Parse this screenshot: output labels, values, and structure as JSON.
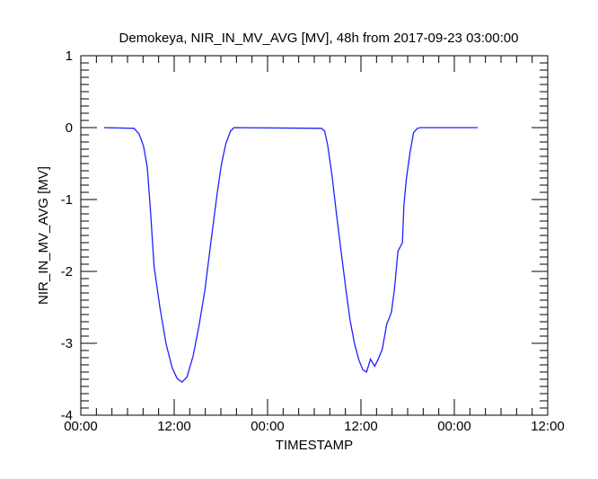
{
  "chart_data": {
    "type": "line",
    "title": "Demokeya, NIR_IN_MV_AVG [MV], 48h from  2017-09-23 03:00:00",
    "xlabel": "TIMESTAMP",
    "ylabel": "NIR_IN_MV_AVG [MV]",
    "xlim_hours": [
      0,
      60
    ],
    "ylim": [
      -4,
      1
    ],
    "x_tick_hours": [
      0,
      12,
      24,
      36,
      48,
      60
    ],
    "x_tick_labels": [
      "00:00",
      "12:00",
      "00:00",
      "12:00",
      "00:00",
      "12:00"
    ],
    "y_ticks": [
      1,
      0,
      -1,
      -2,
      -3,
      -4
    ],
    "y_tick_labels": [
      "1",
      "0",
      "-1",
      "-2",
      "-3",
      "-4"
    ],
    "grid": false,
    "series": [
      {
        "name": "NIR_IN_MV_AVG",
        "color": "#2020ff",
        "x_hours": [
          3,
          6.84,
          7.5,
          8.07,
          8.54,
          8.92,
          9.42,
          10.18,
          10.96,
          11.73,
          12.38,
          13.0,
          13.64,
          14.42,
          15.19,
          15.95,
          16.72,
          17.5,
          18.07,
          18.65,
          19.23,
          19.69,
          30.95,
          31.34,
          31.72,
          32.3,
          32.87,
          33.45,
          34.03,
          34.6,
          35.18,
          35.76,
          36.25,
          36.71,
          37.22,
          37.75,
          38.26,
          38.75,
          39.3,
          39.91,
          40.29,
          40.75,
          41.33,
          41.52,
          41.83,
          42.3,
          42.76,
          43.25,
          43.63,
          51
        ],
        "values": [
          0,
          -0.01,
          -0.09,
          -0.26,
          -0.55,
          -1.1,
          -1.93,
          -2.51,
          -3.01,
          -3.34,
          -3.49,
          -3.54,
          -3.47,
          -3.18,
          -2.76,
          -2.26,
          -1.59,
          -0.93,
          -0.51,
          -0.22,
          -0.05,
          0,
          -0.01,
          -0.05,
          -0.24,
          -0.68,
          -1.22,
          -1.72,
          -2.22,
          -2.68,
          -3.01,
          -3.24,
          -3.37,
          -3.4,
          -3.22,
          -3.32,
          -3.21,
          -3.08,
          -2.74,
          -2.57,
          -2.26,
          -1.72,
          -1.6,
          -1.09,
          -0.72,
          -0.35,
          -0.07,
          -0.01,
          0,
          0
        ]
      }
    ]
  }
}
